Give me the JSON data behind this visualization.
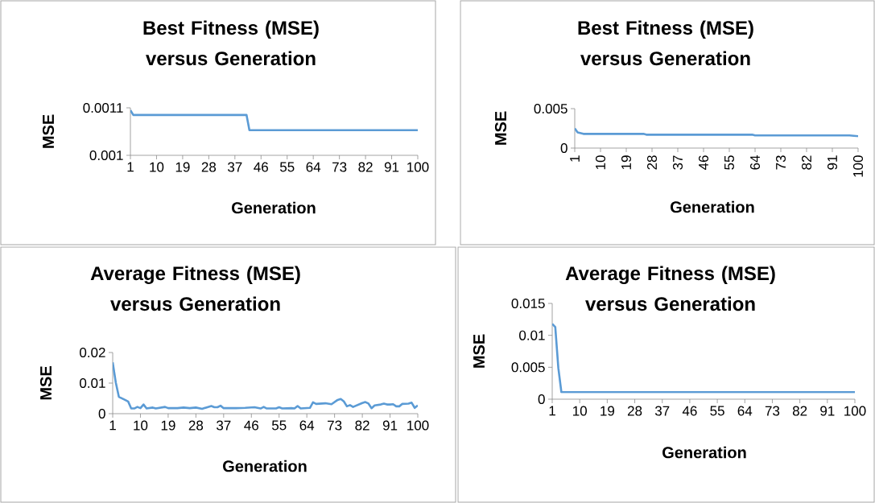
{
  "chart_data": [
    {
      "type": "line",
      "title": "Best Fitness (MSE) versus Generation",
      "xlabel": "Generation",
      "ylabel": "MSE",
      "color": "#5b9bd5",
      "x": [
        1,
        2,
        41,
        42,
        100
      ],
      "values": [
        0.001095,
        0.001085,
        0.001085,
        0.001053,
        0.001053
      ],
      "xlim": [
        1,
        100
      ],
      "xticks": [
        1,
        10,
        19,
        28,
        37,
        46,
        55,
        64,
        73,
        82,
        91,
        100
      ],
      "ylim": [
        0.001,
        0.0011
      ],
      "yticks": [
        0.001,
        0.0011
      ]
    },
    {
      "type": "line",
      "title": "Best Fitness (MSE) versus Generation",
      "xlabel": "Generation",
      "ylabel": "MSE",
      "color": "#5b9bd5",
      "x": [
        1,
        2,
        4,
        25,
        26,
        63,
        64,
        97,
        100
      ],
      "values": [
        0.0025,
        0.002,
        0.0018,
        0.0018,
        0.0017,
        0.0017,
        0.0016,
        0.0016,
        0.0015
      ],
      "xlim": [
        1,
        100
      ],
      "xticks": [
        1,
        10,
        19,
        28,
        37,
        46,
        55,
        64,
        73,
        82,
        91,
        100
      ],
      "ylim": [
        0,
        0.005
      ],
      "yticks": [
        0,
        0.005
      ]
    },
    {
      "type": "line",
      "title": "Average Fitness (MSE) versus Generation",
      "xlabel": "Generation",
      "ylabel": "MSE",
      "color": "#5b9bd5",
      "x": [
        1,
        2,
        3,
        5,
        6,
        7,
        8,
        9,
        10,
        11,
        12,
        14,
        15,
        18,
        19,
        22,
        24,
        26,
        28,
        30,
        33,
        34,
        35,
        36,
        37,
        41,
        44,
        47,
        49,
        50,
        51,
        54,
        55,
        56,
        59,
        60,
        61,
        62,
        65,
        66,
        67,
        70,
        72,
        74,
        75,
        76,
        77,
        78,
        79,
        82,
        83,
        84,
        85,
        86,
        88,
        89,
        90,
        91,
        92,
        93,
        94,
        95,
        97,
        98,
        99,
        100
      ],
      "values": [
        0.0168,
        0.0102,
        0.0055,
        0.0045,
        0.004,
        0.0017,
        0.0017,
        0.0022,
        0.0018,
        0.003,
        0.0017,
        0.002,
        0.0017,
        0.0022,
        0.0018,
        0.0018,
        0.002,
        0.0018,
        0.002,
        0.0016,
        0.0025,
        0.0021,
        0.0021,
        0.0026,
        0.0018,
        0.0018,
        0.0019,
        0.0021,
        0.0017,
        0.0022,
        0.0017,
        0.0017,
        0.0021,
        0.0017,
        0.0018,
        0.0017,
        0.0025,
        0.0017,
        0.0019,
        0.0037,
        0.0032,
        0.0034,
        0.0031,
        0.0045,
        0.0048,
        0.004,
        0.0024,
        0.0028,
        0.0022,
        0.0035,
        0.0038,
        0.0033,
        0.0018,
        0.0027,
        0.003,
        0.0033,
        0.003,
        0.003,
        0.0031,
        0.0024,
        0.0024,
        0.0032,
        0.0033,
        0.0036,
        0.0019,
        0.0027
      ],
      "xlim": [
        1,
        100
      ],
      "xticks": [
        1,
        10,
        19,
        28,
        37,
        46,
        55,
        64,
        73,
        82,
        91,
        100
      ],
      "ylim": [
        0,
        0.02
      ],
      "yticks": [
        0,
        0.01,
        0.02
      ]
    },
    {
      "type": "line",
      "title": "Average Fitness (MSE) versus Generation",
      "xlabel": "Generation",
      "ylabel": "MSE",
      "color": "#5b9bd5",
      "x": [
        1,
        2,
        3,
        4,
        100
      ],
      "values": [
        0.0118,
        0.0113,
        0.0049,
        0.0011,
        0.0011
      ],
      "xlim": [
        1,
        100
      ],
      "xticks": [
        1,
        10,
        19,
        28,
        37,
        46,
        55,
        64,
        73,
        82,
        91,
        100
      ],
      "ylim": [
        0,
        0.015
      ],
      "yticks": [
        0,
        0.005,
        0.01,
        0.015
      ]
    }
  ]
}
